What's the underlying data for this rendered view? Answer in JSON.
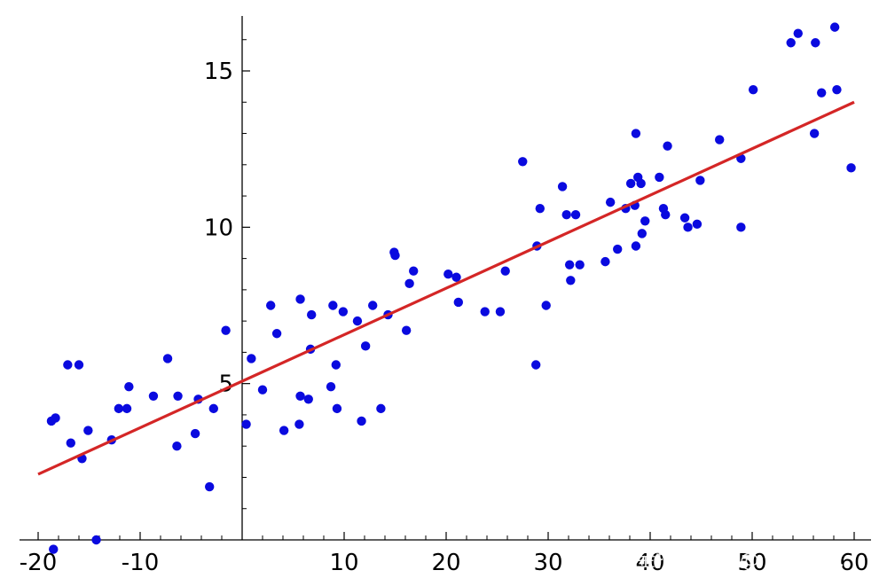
{
  "chart_data": {
    "type": "scatter",
    "title": "",
    "xlabel": "",
    "ylabel": "",
    "xlim": [
      -20,
      60
    ],
    "ylim": [
      0,
      16.7
    ],
    "x_ticks": [
      -20,
      -10,
      10,
      20,
      30,
      40,
      50,
      60
    ],
    "y_ticks": [
      5,
      10,
      15
    ],
    "x_tick_labels": [
      "-20",
      "-10",
      "10",
      "20",
      "30",
      "40",
      "50",
      "60"
    ],
    "y_tick_labels": [
      "5",
      "10",
      "15"
    ],
    "grid": false,
    "series": [
      {
        "type": "scatter",
        "color": "#0a0adf",
        "points": [
          [
            -18.5,
            -0.3
          ],
          [
            -18.7,
            3.8
          ],
          [
            -18.3,
            3.9
          ],
          [
            -17.1,
            5.6
          ],
          [
            -16.8,
            3.1
          ],
          [
            -16.0,
            5.6
          ],
          [
            -15.7,
            2.6
          ],
          [
            -14.3,
            0.0
          ],
          [
            -15.1,
            3.5
          ],
          [
            -12.8,
            3.2
          ],
          [
            -12.1,
            4.2
          ],
          [
            -11.3,
            4.2
          ],
          [
            -11.1,
            4.9
          ],
          [
            -8.7,
            4.6
          ],
          [
            -7.3,
            5.8
          ],
          [
            -6.4,
            3.0
          ],
          [
            -6.3,
            4.6
          ],
          [
            -4.6,
            3.4
          ],
          [
            -4.3,
            4.5
          ],
          [
            -3.2,
            1.7
          ],
          [
            -2.8,
            4.2
          ],
          [
            -1.6,
            6.7
          ],
          [
            0.4,
            3.7
          ],
          [
            0.9,
            5.8
          ],
          [
            2.0,
            4.8
          ],
          [
            2.8,
            7.5
          ],
          [
            3.4,
            6.6
          ],
          [
            4.1,
            3.5
          ],
          [
            5.6,
            3.7
          ],
          [
            5.7,
            4.6
          ],
          [
            5.7,
            7.7
          ],
          [
            6.5,
            4.5
          ],
          [
            6.8,
            7.2
          ],
          [
            6.7,
            6.1
          ],
          [
            8.7,
            4.9
          ],
          [
            8.9,
            7.5
          ],
          [
            9.2,
            5.6
          ],
          [
            9.3,
            4.2
          ],
          [
            9.9,
            7.3
          ],
          [
            11.3,
            7.0
          ],
          [
            11.7,
            3.8
          ],
          [
            12.1,
            6.2
          ],
          [
            12.8,
            7.5
          ],
          [
            13.6,
            4.2
          ],
          [
            14.3,
            7.2
          ],
          [
            14.9,
            9.2
          ],
          [
            15.0,
            9.1
          ],
          [
            16.1,
            6.7
          ],
          [
            16.4,
            8.2
          ],
          [
            16.8,
            8.6
          ],
          [
            20.2,
            8.5
          ],
          [
            21.0,
            8.4
          ],
          [
            21.2,
            7.6
          ],
          [
            23.8,
            7.3
          ],
          [
            25.3,
            7.3
          ],
          [
            25.8,
            8.6
          ],
          [
            27.5,
            12.1
          ],
          [
            28.8,
            5.6
          ],
          [
            28.9,
            9.4
          ],
          [
            29.2,
            10.6
          ],
          [
            29.8,
            7.5
          ],
          [
            31.4,
            11.3
          ],
          [
            31.8,
            10.4
          ],
          [
            32.1,
            8.8
          ],
          [
            32.2,
            8.3
          ],
          [
            32.7,
            10.4
          ],
          [
            33.1,
            8.8
          ],
          [
            35.6,
            8.9
          ],
          [
            36.1,
            10.8
          ],
          [
            36.8,
            9.3
          ],
          [
            37.6,
            10.6
          ],
          [
            38.1,
            11.4
          ],
          [
            38.5,
            10.7
          ],
          [
            38.6,
            13.0
          ],
          [
            38.6,
            9.4
          ],
          [
            38.8,
            11.6
          ],
          [
            39.1,
            11.4
          ],
          [
            39.2,
            9.8
          ],
          [
            39.5,
            10.2
          ],
          [
            40.9,
            11.6
          ],
          [
            41.3,
            10.6
          ],
          [
            41.5,
            10.4
          ],
          [
            41.7,
            12.6
          ],
          [
            43.4,
            10.3
          ],
          [
            43.7,
            10.0
          ],
          [
            44.6,
            10.1
          ],
          [
            44.9,
            11.5
          ],
          [
            46.8,
            12.8
          ],
          [
            48.9,
            12.2
          ],
          [
            48.9,
            10.0
          ],
          [
            50.1,
            14.4
          ],
          [
            53.8,
            15.9
          ],
          [
            54.5,
            16.2
          ],
          [
            56.1,
            13.0
          ],
          [
            56.2,
            15.9
          ],
          [
            56.8,
            14.3
          ],
          [
            58.1,
            16.4
          ],
          [
            58.3,
            14.4
          ],
          [
            59.7,
            11.9
          ]
        ]
      },
      {
        "type": "line",
        "color": "#d42626",
        "x": [
          -20,
          60
        ],
        "y": [
          2.1,
          14.0
        ]
      }
    ]
  },
  "watermark": {
    "text": "掘金技术社区 @ 布客飞龙"
  }
}
